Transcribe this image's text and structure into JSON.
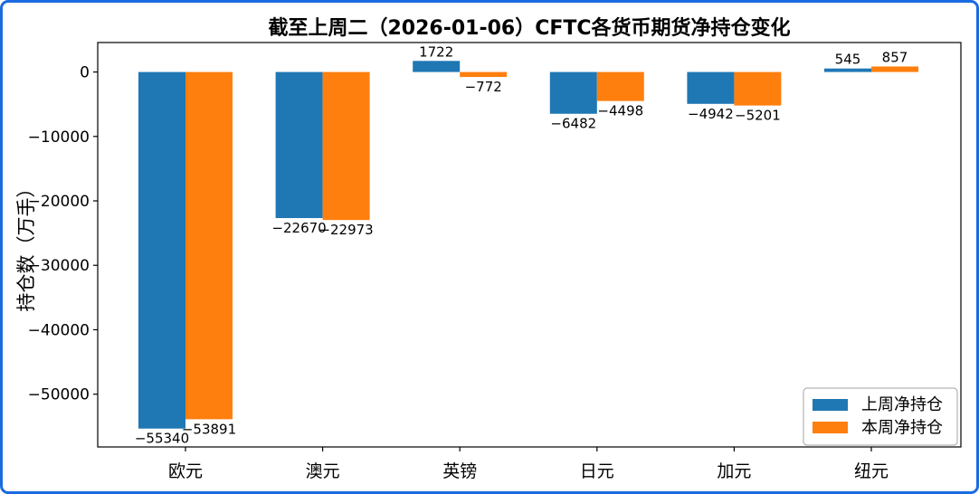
{
  "frame": {
    "border_color": "#1b6be0",
    "background": "#ffffff"
  },
  "chart_data": {
    "type": "bar",
    "title": "截至上周二（2026-01-06）CFTC各货币期货净持仓变化",
    "xlabel": "",
    "ylabel": "持仓数（万手）",
    "categories": [
      "欧元",
      "澳元",
      "英镑",
      "日元",
      "加元",
      "纽元"
    ],
    "series": [
      {
        "name": "上周净持仓",
        "color": "#1f77b4",
        "values": [
          -55340,
          -22670,
          1722,
          -6482,
          -4942,
          545
        ]
      },
      {
        "name": "本周净持仓",
        "color": "#ff7f0e",
        "values": [
          -53891,
          -22973,
          -772,
          -4498,
          -5201,
          857
        ]
      }
    ],
    "yticks": [
      0,
      -10000,
      -20000,
      -30000,
      -40000,
      -50000
    ],
    "ylim": [
      -58190,
      4575
    ],
    "grid": false,
    "bar_value_labels": true,
    "legend_position": "lower right",
    "axis_color": "#000000",
    "legend_border_color": "#b3b3b3"
  }
}
